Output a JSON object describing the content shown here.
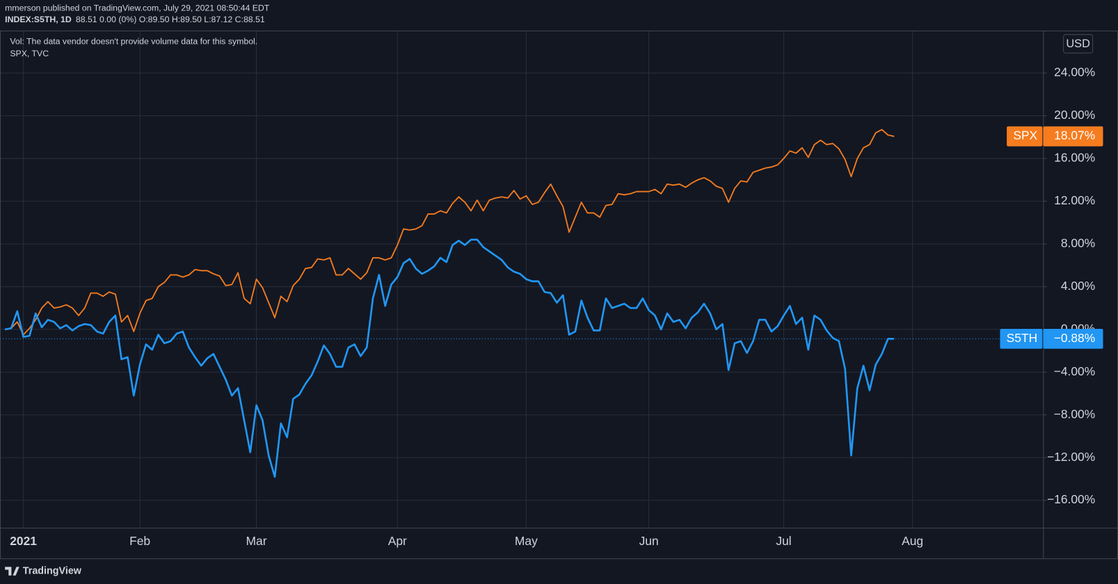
{
  "chart_data": {
    "type": "line",
    "publisher_line": "mmerson published on TradingView.com, July 29, 2021 08:50:44 EDT",
    "symbol": "INDEX:S5TH, 1D",
    "quote": "88.51 0.00 (0%) O:89.50 H:89.50 L:87.12 C:88.51",
    "volume_note": "Vol: The data vendor doesn't provide volume data for this symbol.",
    "comparison_legend": "SPX, TVC",
    "currency": "USD",
    "branding": "TradingView",
    "grid": true,
    "ylim": [
      -18.5,
      27.9
    ],
    "yticks": [
      {
        "value": -16,
        "label": "−16.00%"
      },
      {
        "value": -12,
        "label": "−12.00%"
      },
      {
        "value": -8,
        "label": "−8.00%"
      },
      {
        "value": -4,
        "label": "−4.00%"
      },
      {
        "value": 0,
        "label": "0.00%"
      },
      {
        "value": 4,
        "label": "4.00%"
      },
      {
        "value": 8,
        "label": "8.00%"
      },
      {
        "value": 12,
        "label": "12.00%"
      },
      {
        "value": 16,
        "label": "16.00%"
      },
      {
        "value": 20,
        "label": "20.00%"
      },
      {
        "value": 24,
        "label": "24.00%"
      }
    ],
    "categories": [
      null,
      null,
      null,
      "2021",
      null,
      null,
      null,
      null,
      null,
      null,
      null,
      null,
      null,
      null,
      null,
      null,
      null,
      null,
      null,
      null,
      null,
      null,
      "Feb",
      null,
      null,
      null,
      null,
      null,
      null,
      null,
      null,
      null,
      null,
      null,
      null,
      null,
      null,
      null,
      null,
      null,
      null,
      "Mar",
      null,
      null,
      null,
      null,
      null,
      null,
      null,
      null,
      null,
      null,
      null,
      null,
      null,
      null,
      null,
      null,
      null,
      null,
      null,
      null,
      null,
      null,
      "Apr",
      null,
      null,
      null,
      null,
      null,
      null,
      null,
      null,
      null,
      null,
      null,
      null,
      null,
      null,
      null,
      null,
      null,
      null,
      null,
      null,
      "May",
      null,
      null,
      null,
      null,
      null,
      null,
      null,
      null,
      null,
      null,
      null,
      null,
      null,
      null,
      null,
      null,
      null,
      null,
      null,
      "Jun",
      null,
      null,
      null,
      null,
      null,
      null,
      null,
      null,
      null,
      null,
      null,
      null,
      null,
      null,
      null,
      null,
      null,
      null,
      null,
      null,
      null,
      "Jul",
      null,
      null,
      null,
      null,
      null,
      null,
      null,
      null,
      null,
      null,
      null,
      null,
      null,
      null,
      null,
      null,
      null,
      null,
      null,
      null,
      "Aug"
    ],
    "series": [
      {
        "name": "SPX",
        "color": "#f57c1f",
        "last_value_label": "18.07%",
        "values": [
          0,
          0.1,
          0.7,
          -0.5,
          0.1,
          0.9,
          2.0,
          2.6,
          2.0,
          2.1,
          2.3,
          2.0,
          1.3,
          2.0,
          3.4,
          3.4,
          3.1,
          3.5,
          3.3,
          0.7,
          1.3,
          -0.2,
          1.5,
          2.7,
          2.9,
          4.0,
          4.4,
          5.1,
          5.1,
          4.9,
          5.1,
          5.6,
          5.5,
          5.5,
          5.2,
          5.0,
          4.1,
          4.2,
          5.3,
          2.9,
          2.4,
          4.7,
          3.9,
          2.5,
          1.1,
          3.1,
          2.6,
          4.1,
          4.7,
          5.7,
          5.8,
          6.6,
          6.5,
          6.7,
          5.1,
          5.1,
          5.7,
          5.2,
          4.7,
          5.3,
          6.7,
          6.7,
          6.5,
          6.7,
          7.9,
          9.4,
          9.3,
          9.4,
          9.7,
          10.8,
          10.8,
          11.1,
          10.9,
          11.8,
          12.4,
          11.9,
          11.1,
          12.1,
          11.1,
          12.1,
          12.3,
          12.4,
          12.3,
          13.0,
          12.2,
          12.5,
          11.7,
          11.9,
          12.8,
          13.6,
          12.5,
          11.5,
          9.1,
          10.5,
          11.9,
          10.9,
          10.9,
          10.5,
          11.6,
          11.7,
          12.7,
          12.6,
          12.7,
          12.9,
          12.9,
          12.9,
          13.1,
          12.7,
          13.6,
          13.5,
          13.6,
          13.3,
          13.7,
          14.0,
          14.2,
          13.9,
          13.4,
          13.2,
          11.9,
          13.2,
          13.9,
          13.8,
          14.7,
          14.9,
          15.1,
          15.2,
          15.4,
          16.0,
          16.7,
          16.5,
          17.0,
          16.1,
          17.3,
          17.7,
          17.3,
          17.4,
          16.9,
          15.9,
          14.3,
          16.0,
          17.0,
          17.3,
          18.4,
          18.7,
          18.2,
          18.07,
          null,
          null,
          null
        ]
      },
      {
        "name": "S5TH",
        "color": "#2196f3",
        "last_value_label": "−0.88%",
        "price_line": true,
        "values": [
          0,
          0.1,
          1.7,
          -0.7,
          -0.6,
          1.5,
          0.2,
          0.9,
          0.7,
          0.1,
          0.4,
          -0.1,
          0.3,
          0.5,
          0.4,
          -0.2,
          -0.4,
          0.7,
          1.3,
          -2.8,
          -2.6,
          -6.2,
          -3.3,
          -1.4,
          -1.9,
          -0.5,
          -1.3,
          -1.1,
          -0.4,
          -0.2,
          -1.7,
          -2.6,
          -3.4,
          -2.7,
          -2.3,
          -3.5,
          -4.7,
          -6.2,
          -5.5,
          -8.5,
          -11.5,
          -7.1,
          -8.5,
          -11.8,
          -13.8,
          -8.8,
          -10.1,
          -6.5,
          -6.1,
          -5.1,
          -4.3,
          -3.0,
          -1.5,
          -2.3,
          -3.5,
          -3.5,
          -1.7,
          -1.4,
          -2.5,
          -1.7,
          2.9,
          5.1,
          2.2,
          4.2,
          4.9,
          6.2,
          6.6,
          5.7,
          5.2,
          5.5,
          5.9,
          6.7,
          6.3,
          7.9,
          8.3,
          7.9,
          8.4,
          8.4,
          7.7,
          7.3,
          6.9,
          6.5,
          5.8,
          5.4,
          5.2,
          4.7,
          4.5,
          4.5,
          3.5,
          3.4,
          2.5,
          3.2,
          -0.5,
          -0.2,
          2.7,
          1.1,
          -0.1,
          -0.1,
          2.9,
          2.0,
          2.2,
          2.4,
          2.0,
          2.0,
          2.9,
          1.8,
          1.3,
          0,
          1.5,
          0.7,
          0.9,
          0.1,
          1.1,
          1.6,
          2.4,
          1.5,
          0,
          0.5,
          -3.8,
          -1.3,
          -1.1,
          -2.2,
          -1.1,
          0.9,
          0.9,
          -0.2,
          0.3,
          1.3,
          2.2,
          0.5,
          1.1,
          -1.9,
          1.3,
          0.9,
          -0.1,
          -0.8,
          -1.1,
          -3.7,
          -11.8,
          -5.5,
          -3.4,
          -5.7,
          -3.3,
          -2.3,
          -0.88,
          -0.88,
          null,
          null,
          null
        ]
      }
    ]
  }
}
